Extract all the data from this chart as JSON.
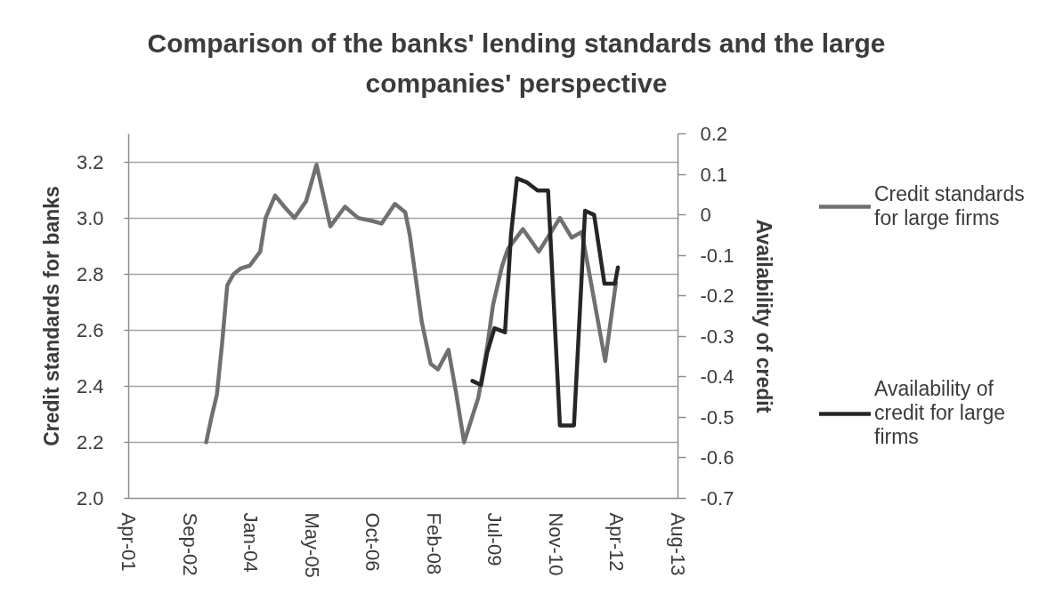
{
  "chart_data": {
    "type": "line",
    "title": "Comparison of the banks' lending standards and the large companies' perspective",
    "ylabel": "Credit standards for banks",
    "y2label": "Availability of credit",
    "xlim": [
      "2001-04-19",
      "2013-08-14"
    ],
    "xticks": [
      {
        "value": "2001-04-19",
        "label": "Apr-01"
      },
      {
        "value": "2002-09-01",
        "label": "Sep-02"
      },
      {
        "value": "2004-01-14",
        "label": "Jan-04"
      },
      {
        "value": "2005-05-28",
        "label": "May-05"
      },
      {
        "value": "2006-10-10",
        "label": "Oct-06"
      },
      {
        "value": "2008-02-22",
        "label": "Feb-08"
      },
      {
        "value": "2009-07-06",
        "label": "Jul-09"
      },
      {
        "value": "2010-11-18",
        "label": "Nov-10"
      },
      {
        "value": "2012-04-01",
        "label": "Apr-12"
      },
      {
        "value": "2013-08-14",
        "label": "Aug-13"
      }
    ],
    "ylim": [
      2.0,
      3.3
    ],
    "yticks": [
      {
        "value": 2,
        "label": "2.0"
      },
      2.2,
      2.4,
      2.6,
      2.8,
      {
        "value": 3,
        "label": "3.0"
      },
      3.2
    ],
    "y2lim": [
      -0.7,
      0.2
    ],
    "y2ticks": [
      -0.7,
      -0.6,
      -0.5,
      -0.4,
      -0.3,
      -0.2,
      -0.1,
      0,
      0.1,
      0.2
    ],
    "grid": "y",
    "legend": "right",
    "line_style": "solid",
    "series": [
      {
        "name": "Credit standards for large firms",
        "color": "#707070",
        "x": [
          "2003-01-14",
          "2003-02-27",
          "2003-04-12",
          "2003-05-24",
          "2003-07-06",
          "2003-08-27",
          "2003-10-24",
          "2004-01-06",
          "2004-04-01",
          "2004-05-15",
          "2004-08-01",
          "2004-10-15",
          "2005-01-06",
          "2005-04-12",
          "2005-07-06",
          "2005-10-27",
          "2006-02-24",
          "2006-06-12",
          "2006-09-28",
          "2006-12-21",
          "2007-04-09",
          "2007-07-03",
          "2007-08-09",
          "2007-11-15",
          "2008-01-27",
          "2008-03-27",
          "2008-06-21",
          "2008-08-21",
          "2008-10-27",
          "2009-02-21",
          "2009-05-04",
          "2009-06-21",
          "2009-09-04",
          "2009-10-21",
          "2010-02-21",
          "2010-07-01",
          "2010-12-21",
          "2011-03-27",
          "2011-06-18",
          "2011-12-27",
          "2012-03-24"
        ],
        "values": [
          2.2,
          2.29,
          2.37,
          2.55,
          2.76,
          2.8,
          2.82,
          2.83,
          2.88,
          3.0,
          3.08,
          3.04,
          3.0,
          3.06,
          3.19,
          2.97,
          3.04,
          3.0,
          2.99,
          2.98,
          3.05,
          3.02,
          2.94,
          2.63,
          2.48,
          2.46,
          2.53,
          2.38,
          2.2,
          2.36,
          2.54,
          2.69,
          2.83,
          2.89,
          2.96,
          2.88,
          3.0,
          2.93,
          2.95,
          2.49,
          2.77
        ]
      },
      {
        "name": "Availability of credit for large firms",
        "color": "#262626",
        "axis": "y2",
        "x": [
          "2009-01-03",
          "2009-03-15",
          "2009-05-04",
          "2009-07-03",
          "2009-09-27",
          "2009-11-15",
          "2010-01-03",
          "2010-03-27",
          "2010-06-21",
          "2010-09-15",
          "2010-12-21",
          "2011-04-15",
          "2011-07-15",
          "2011-09-27",
          "2011-12-21",
          "2012-03-15",
          "2012-04-09"
        ],
        "values": [
          -0.41,
          -0.42,
          -0.34,
          -0.28,
          -0.29,
          -0.05,
          0.09,
          0.08,
          0.06,
          0.06,
          -0.52,
          -0.52,
          0.01,
          0.0,
          -0.17,
          -0.17,
          -0.13
        ]
      }
    ]
  }
}
